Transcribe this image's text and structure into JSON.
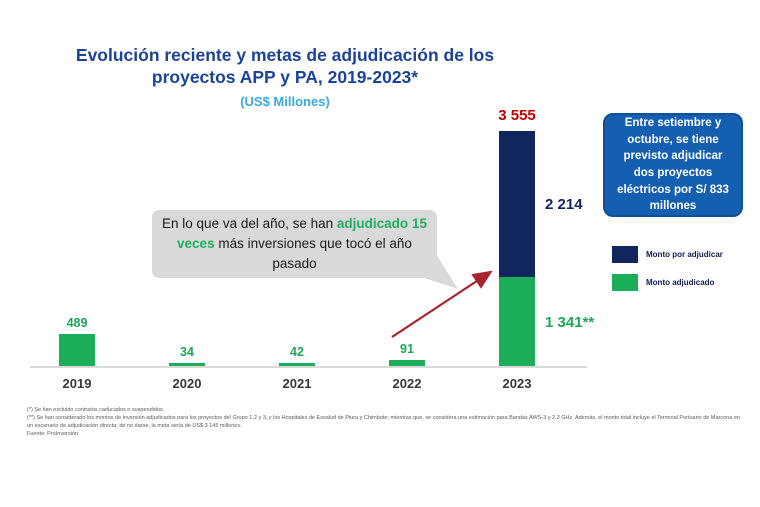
{
  "chart_data": {
    "type": "bar",
    "stacked": true,
    "title": "Evolución reciente y metas de adjudicación de los proyectos APP y PA, 2019-2023*",
    "subtitle": "(US$ Millones)",
    "categories": [
      "2019",
      "2020",
      "2021",
      "2022",
      "2023"
    ],
    "series": [
      {
        "name": "Monto adjudicado",
        "color": "#1bae58",
        "values": [
          489,
          34,
          42,
          91,
          1341
        ]
      },
      {
        "name": "Monto por adjudicar",
        "color": "#12265e",
        "values": [
          0,
          0,
          0,
          0,
          2214
        ]
      }
    ],
    "value_labels": [
      "489",
      "34",
      "42",
      "91",
      null
    ],
    "total_label_2023": "3 555",
    "segment_labels_2023": [
      {
        "series": "Monto por adjudicar",
        "text": "2 214",
        "color": "#12265e"
      },
      {
        "series": "Monto adjudicado",
        "text": "1 341**",
        "color": "#1fa558"
      }
    ],
    "ylim": [
      0,
      3700
    ],
    "grid": false,
    "legend_position": "right"
  },
  "annotation_bubble": {
    "prefix": "En lo que va del año, se han ",
    "highlight": "adjudicado 15 veces",
    "suffix": " más inversiones que tocó el año pasado"
  },
  "callout_box": {
    "text": "Entre setiembre y octubre, se tiene previsto adjudicar dos proyectos eléctricos por S/ 833 millones"
  },
  "legend": [
    {
      "label": "Monto por adjudicar",
      "color": "#12265e"
    },
    {
      "label": "Monto adjudicado",
      "color": "#1bae58"
    }
  ],
  "footnotes": {
    "line1": "(*) Se han excluido contratos caducados o suspendidos.",
    "body": "(**) Se han considerado los montos de inversión adjudicados para los proyectos del Grupo 1,2 y 3, y los Hospitales de Essalud de Piura y Chimbote; mientras que, se considera una estimación para Bandas AWS-3 y 2.3 GHz. Además, el monto total incluye el Terminal Portuario de Marcona en un escenario de adjudicación directa; de no darse, la meta sería de US$ 3 145 millones.",
    "source": "Fuente: ProInversión"
  },
  "colors": {
    "title": "#1b4397",
    "subtitle": "#3ea7dc",
    "green": "#1bae58",
    "navy": "#12265e",
    "total_red": "#c00000",
    "arrow_red": "#a8232e",
    "callout_blue": "#155fb0",
    "bubble_gray": "#d9d9d9"
  }
}
